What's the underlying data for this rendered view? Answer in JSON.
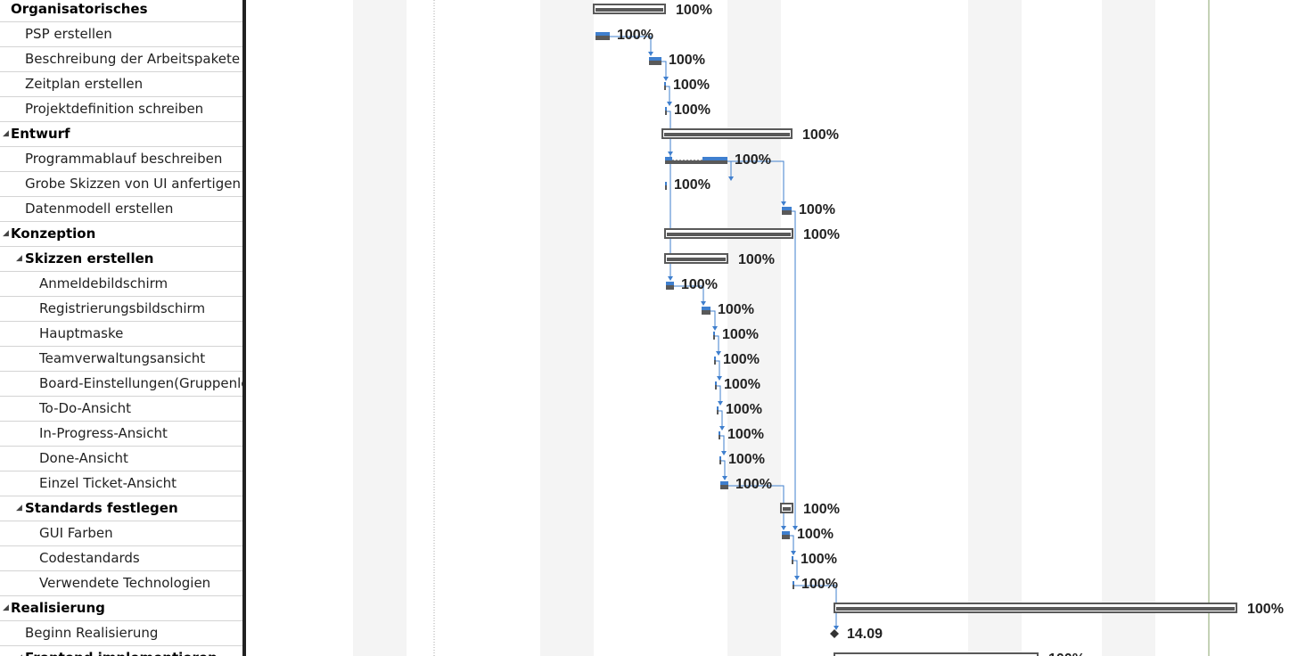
{
  "tasks": [
    {
      "name": "Organisatorisches",
      "level": 0,
      "summary": true,
      "collapsible": false
    },
    {
      "name": "PSP erstellen",
      "level": 1,
      "summary": false
    },
    {
      "name": "Beschreibung der Arbeitspakete",
      "level": 1,
      "summary": false
    },
    {
      "name": "Zeitplan erstellen",
      "level": 1,
      "summary": false
    },
    {
      "name": "Projektdefinition schreiben",
      "level": 1,
      "summary": false
    },
    {
      "name": "Entwurf",
      "level": 0,
      "summary": true,
      "collapsible": true
    },
    {
      "name": "Programmablauf beschreiben",
      "level": 1,
      "summary": false
    },
    {
      "name": "Grobe Skizzen von UI anfertigen",
      "level": 1,
      "summary": false
    },
    {
      "name": "Datenmodell erstellen",
      "level": 1,
      "summary": false
    },
    {
      "name": "Konzeption",
      "level": 0,
      "summary": true,
      "collapsible": true
    },
    {
      "name": "Skizzen erstellen",
      "level": 1,
      "summary": true,
      "collapsible": true
    },
    {
      "name": "Anmeldebildschirm",
      "level": 2,
      "summary": false
    },
    {
      "name": "Registrierungsbildschirm",
      "level": 2,
      "summary": false
    },
    {
      "name": "Hauptmaske",
      "level": 2,
      "summary": false
    },
    {
      "name": "Teamverwaltungsansicht",
      "level": 2,
      "summary": false
    },
    {
      "name": "Board-Einstellungen(Gruppenlei",
      "level": 2,
      "summary": false
    },
    {
      "name": "To-Do-Ansicht",
      "level": 2,
      "summary": false
    },
    {
      "name": "In-Progress-Ansicht",
      "level": 2,
      "summary": false
    },
    {
      "name": "Done-Ansicht",
      "level": 2,
      "summary": false
    },
    {
      "name": "Einzel Ticket-Ansicht",
      "level": 2,
      "summary": false
    },
    {
      "name": "Standards festlegen",
      "level": 1,
      "summary": true,
      "collapsible": true
    },
    {
      "name": "GUI Farben",
      "level": 2,
      "summary": false
    },
    {
      "name": "Codestandards",
      "level": 2,
      "summary": false
    },
    {
      "name": "Verwendete Technologien",
      "level": 2,
      "summary": false
    },
    {
      "name": "Realisierung",
      "level": 0,
      "summary": true,
      "collapsible": true
    },
    {
      "name": "Beginn Realisierung",
      "level": 1,
      "summary": false
    },
    {
      "name": "Frontend implementieren",
      "level": 1,
      "summary": true,
      "collapsible": true
    }
  ],
  "gantt": {
    "bars": [
      {
        "type": "summary",
        "start": 390,
        "end": 470,
        "label": "100%"
      },
      {
        "type": "task",
        "start": 392,
        "end": 408,
        "label": "100%"
      },
      {
        "type": "task",
        "start": 452,
        "end": 466,
        "label": "100%"
      },
      {
        "type": "task",
        "start": 469,
        "end": 471,
        "label": "100%"
      },
      {
        "type": "task",
        "start": 470,
        "end": 472,
        "label": "100%"
      },
      {
        "type": "summary",
        "start": 467,
        "end": 612,
        "label": "100%"
      },
      {
        "type": "split",
        "start": 472,
        "end": 540,
        "label": "100%"
      },
      {
        "type": "task",
        "start": 470,
        "end": 472,
        "label": "100%"
      },
      {
        "type": "task",
        "start": 601,
        "end": 612,
        "label": "100%"
      },
      {
        "type": "summary",
        "start": 470,
        "end": 613,
        "label": "100%"
      },
      {
        "type": "summary",
        "start": 470,
        "end": 540,
        "label": "100%"
      },
      {
        "type": "task",
        "start": 471,
        "end": 480,
        "label": "100%"
      },
      {
        "type": "task",
        "start": 511,
        "end": 521,
        "label": "100%"
      },
      {
        "type": "task",
        "start": 524,
        "end": 526,
        "label": "100%"
      },
      {
        "type": "task",
        "start": 525,
        "end": 527,
        "label": "100%"
      },
      {
        "type": "task",
        "start": 526,
        "end": 528,
        "label": "100%"
      },
      {
        "type": "task",
        "start": 528,
        "end": 530,
        "label": "100%"
      },
      {
        "type": "task",
        "start": 530,
        "end": 532,
        "label": "100%"
      },
      {
        "type": "task",
        "start": 531,
        "end": 533,
        "label": "100%"
      },
      {
        "type": "task",
        "start": 532,
        "end": 541,
        "label": "100%"
      },
      {
        "type": "summary",
        "start": 600,
        "end": 613,
        "label": "100%"
      },
      {
        "type": "task",
        "start": 601,
        "end": 610,
        "label": "100%"
      },
      {
        "type": "task",
        "start": 612,
        "end": 614,
        "label": "100%"
      },
      {
        "type": "task",
        "start": 613,
        "end": 615,
        "label": "100%"
      },
      {
        "type": "summary",
        "start": 660,
        "end": 1111,
        "label": "100%"
      },
      {
        "type": "milestone",
        "start": 660,
        "end": 660,
        "label": "14.09"
      },
      {
        "type": "summary",
        "start": 660,
        "end": 888,
        "label": "100%"
      }
    ],
    "links": [
      [
        1,
        2
      ],
      [
        2,
        3
      ],
      [
        3,
        4
      ],
      [
        4,
        6
      ],
      [
        6,
        7
      ],
      [
        6,
        8
      ],
      [
        4,
        11
      ],
      [
        11,
        12
      ],
      [
        12,
        13
      ],
      [
        13,
        14
      ],
      [
        14,
        15
      ],
      [
        15,
        16
      ],
      [
        16,
        17
      ],
      [
        17,
        18
      ],
      [
        18,
        19
      ],
      [
        19,
        21
      ],
      [
        8,
        21
      ],
      [
        21,
        22
      ],
      [
        22,
        23
      ],
      [
        23,
        25
      ]
    ]
  },
  "colors": {
    "bar_done": "#595959",
    "bar_progress": "#3f7fce",
    "link": "#3f7fce",
    "summary_outline": "#595959",
    "shade": "#f4f4f4",
    "today_line": "#8aa66c",
    "text": "#222222",
    "grid_line": "#d4d4d4",
    "divider": "#222222"
  }
}
